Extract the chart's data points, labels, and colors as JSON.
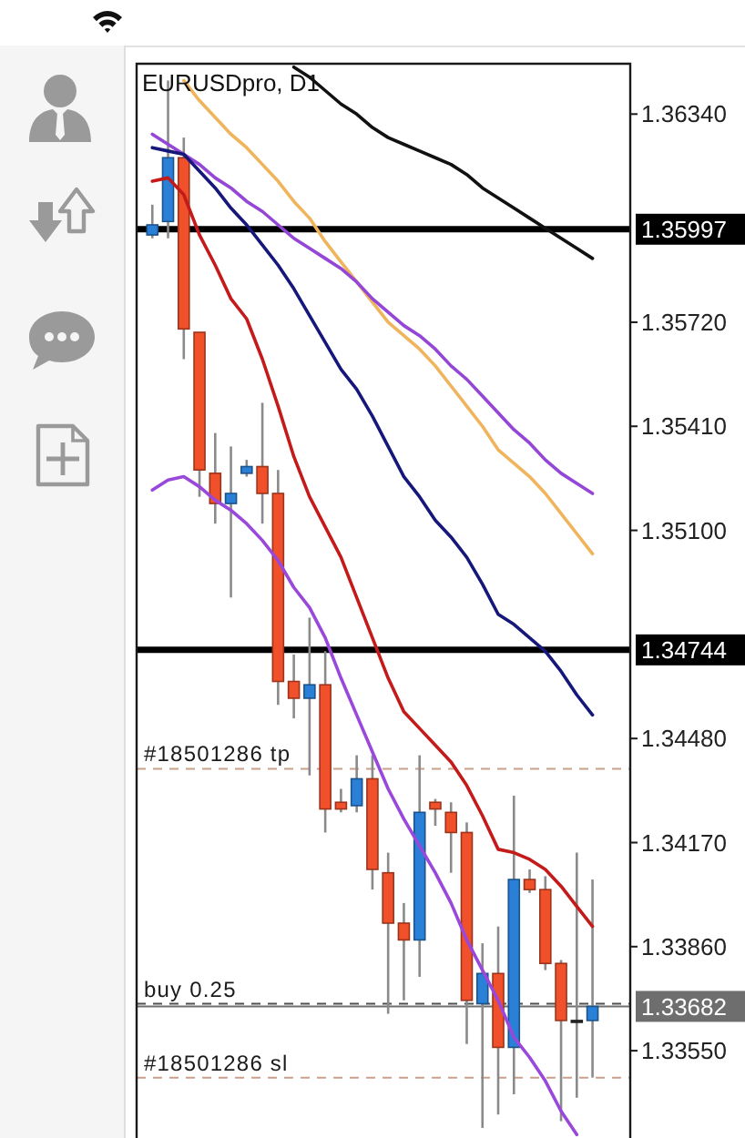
{
  "chart_data": {
    "type": "candlestick",
    "title": "EURUSDpro, D1",
    "categories": [
      null,
      null,
      null,
      null,
      null,
      null,
      null,
      null,
      null,
      null,
      null,
      null,
      null,
      null,
      null,
      null,
      null,
      null,
      null,
      null,
      null,
      null,
      null,
      null,
      null,
      null,
      null,
      null,
      null
    ],
    "ohlc": [
      [
        1.3598,
        1.3607,
        1.3597,
        1.3601
      ],
      [
        1.3602,
        1.3644,
        1.3597,
        1.3621
      ],
      [
        1.3621,
        1.3627,
        1.3561,
        1.357
      ],
      [
        1.3569,
        1.3569,
        1.352,
        1.3528
      ],
      [
        1.3527,
        1.3539,
        1.3512,
        1.3518
      ],
      [
        1.3518,
        1.3535,
        1.349,
        1.3521
      ],
      [
        1.3527,
        1.3531,
        1.3526,
        1.3529
      ],
      [
        1.3529,
        1.3548,
        1.3512,
        1.3521
      ],
      [
        1.3521,
        1.3528,
        1.3458,
        1.3465
      ],
      [
        1.3465,
        1.3473,
        1.3454,
        1.346
      ],
      [
        1.346,
        1.3484,
        1.3437,
        1.3464
      ],
      [
        1.3464,
        1.3474,
        1.342,
        1.3427
      ],
      [
        1.3429,
        1.3433,
        1.3426,
        1.3427
      ],
      [
        1.3428,
        1.3443,
        1.3426,
        1.3436
      ],
      [
        1.3436,
        1.3443,
        1.3403,
        1.3409
      ],
      [
        1.3408,
        1.3414,
        1.3366,
        1.3393
      ],
      [
        1.3393,
        1.3399,
        1.337,
        1.3388
      ],
      [
        1.3388,
        1.3443,
        1.3377,
        1.3426
      ],
      [
        1.3429,
        1.343,
        1.3422,
        1.3427
      ],
      [
        1.3426,
        1.3429,
        1.3408,
        1.342
      ],
      [
        1.342,
        1.3423,
        1.3357,
        1.337
      ],
      [
        1.3369,
        1.3387,
        1.3332,
        1.3378
      ],
      [
        1.3378,
        1.3392,
        1.3336,
        1.3356
      ],
      [
        1.3356,
        1.3431,
        1.3342,
        1.3406
      ],
      [
        1.3406,
        1.3409,
        1.3402,
        1.3403
      ],
      [
        1.3403,
        1.3407,
        1.3379,
        1.3381
      ],
      [
        1.3381,
        1.3382,
        1.3334,
        1.3364
      ],
      [
        1.3364,
        1.3414,
        1.3341,
        1.3364
      ],
      [
        1.3364,
        1.3406,
        1.3347,
        1.33682
      ]
    ],
    "colors": [
      "#2a7fd6",
      "#2a7fd6",
      "#f0502a",
      "#f0502a",
      "#f0502a",
      "#2a7fd6",
      "#2a7fd6",
      "#f0502a",
      "#f0502a",
      "#f0502a",
      "#2a7fd6",
      "#f0502a",
      "#f0502a",
      "#2a7fd6",
      "#f0502a",
      "#f0502a",
      "#f0502a",
      "#2a7fd6",
      "#f0502a",
      "#f0502a",
      "#f0502a",
      "#2a7fd6",
      "#f0502a",
      "#2a7fd6",
      "#f0502a",
      "#f0502a",
      "#f0502a",
      "#303030",
      "#2a7fd6"
    ],
    "series": [
      {
        "type": "line",
        "color": "#111111",
        "values": [
          null,
          null,
          null,
          null,
          null,
          null,
          null,
          null,
          null,
          1.3648,
          1.3645,
          1.3641,
          1.3637,
          1.3634,
          1.363,
          1.3627,
          1.3625,
          1.3623,
          1.3621,
          1.3619,
          1.3616,
          1.3612,
          1.3609,
          1.3606,
          1.3603,
          1.36,
          1.3597,
          1.3594,
          1.3591
        ]
      },
      {
        "type": "line",
        "color": "#f0b45c",
        "values": [
          null,
          null,
          1.3644,
          1.3638,
          1.3633,
          1.3628,
          1.3624,
          1.3619,
          1.3614,
          1.3608,
          1.3603,
          1.3596,
          1.359,
          1.3584,
          1.3578,
          1.3572,
          1.3568,
          1.3564,
          1.3559,
          1.3553,
          1.3547,
          1.3541,
          1.3534,
          1.353,
          1.3526,
          1.3521,
          1.3515,
          1.3509,
          1.3503
        ]
      },
      {
        "type": "line",
        "color": "#9446d6",
        "values": [
          1.3628,
          1.3625,
          1.3622,
          1.3619,
          1.3615,
          1.3612,
          1.3608,
          1.3605,
          1.3601,
          1.3597,
          1.3594,
          1.3591,
          1.3588,
          1.3584,
          1.3579,
          1.3575,
          1.3571,
          1.3568,
          1.3564,
          1.3559,
          1.3555,
          1.355,
          1.3545,
          1.354,
          1.3536,
          1.3531,
          1.3527,
          1.3524,
          1.3521
        ]
      },
      {
        "type": "line",
        "color": "#16177a",
        "values": [
          1.3624,
          1.3623,
          1.3622,
          1.3617,
          1.3612,
          1.3606,
          1.3601,
          1.3595,
          1.3589,
          1.3582,
          1.3574,
          1.3566,
          1.3558,
          1.3552,
          1.3544,
          1.3535,
          1.3526,
          1.352,
          1.3513,
          1.3508,
          1.3502,
          1.3494,
          1.3485,
          1.3482,
          1.3478,
          1.3474,
          1.3468,
          1.3461,
          1.3455
        ]
      },
      {
        "type": "line",
        "color": "#c41a1a",
        "values": [
          1.3614,
          1.3615,
          1.361,
          1.3598,
          1.3589,
          1.3579,
          1.3573,
          1.3561,
          1.3547,
          1.3532,
          1.352,
          1.3511,
          1.3502,
          1.349,
          1.3478,
          1.3466,
          1.3456,
          1.3451,
          1.3446,
          1.3441,
          1.3434,
          1.3425,
          1.3415,
          1.3414,
          1.3412,
          1.3409,
          1.3404,
          1.3398,
          1.3392
        ]
      },
      {
        "type": "line",
        "color": "#9a48dc",
        "values": [
          1.3522,
          1.3525,
          1.3526,
          1.3523,
          1.3519,
          1.3516,
          1.3512,
          1.3507,
          1.3501,
          1.3493,
          1.3487,
          1.3478,
          1.3466,
          1.3455,
          1.3444,
          1.3433,
          1.3424,
          1.3416,
          1.3408,
          1.3399,
          1.3388,
          1.3379,
          1.337,
          1.3359,
          1.3353,
          1.3346,
          1.3337,
          1.333,
          null
        ]
      }
    ],
    "ylim": [
      1.3329,
      1.3649
    ],
    "yticks": [
      {
        "value": 1.3634,
        "label": "1.36340"
      },
      {
        "value": 1.3572,
        "label": "1.35720"
      },
      {
        "value": 1.3541,
        "label": "1.35410"
      },
      {
        "value": 1.351,
        "label": "1.35100"
      },
      {
        "value": 1.3448,
        "label": "1.34480"
      },
      {
        "value": 1.3417,
        "label": "1.34170"
      },
      {
        "value": 1.3386,
        "label": "1.33860"
      },
      {
        "value": 1.3355,
        "label": "1.33550"
      }
    ],
    "tick_labels": "y",
    "ref_lines": [
      {
        "axis": "y",
        "value": 1.35997,
        "label": "1.35997",
        "color": "#000000",
        "line_style": "solid"
      },
      {
        "axis": "y",
        "value": 1.34744,
        "label": "1.34744",
        "color": "#000000",
        "line_style": "solid"
      },
      {
        "axis": "y",
        "value": 1.33682,
        "label": "1.33682",
        "color": "#6e6e6e",
        "line_style": "solid"
      },
      {
        "axis": "y",
        "value": 1.3439,
        "label": "#18501286 tp",
        "color": "#c9a08c",
        "line_style": "dashed"
      },
      {
        "axis": "y",
        "value": 1.3369,
        "label": "buy 0.25",
        "color": "#505050",
        "line_style": "dashed"
      },
      {
        "axis": "y",
        "value": 1.3347,
        "label": "#18501286 sl",
        "color": "#c9a08c",
        "line_style": "dashed"
      }
    ]
  }
}
